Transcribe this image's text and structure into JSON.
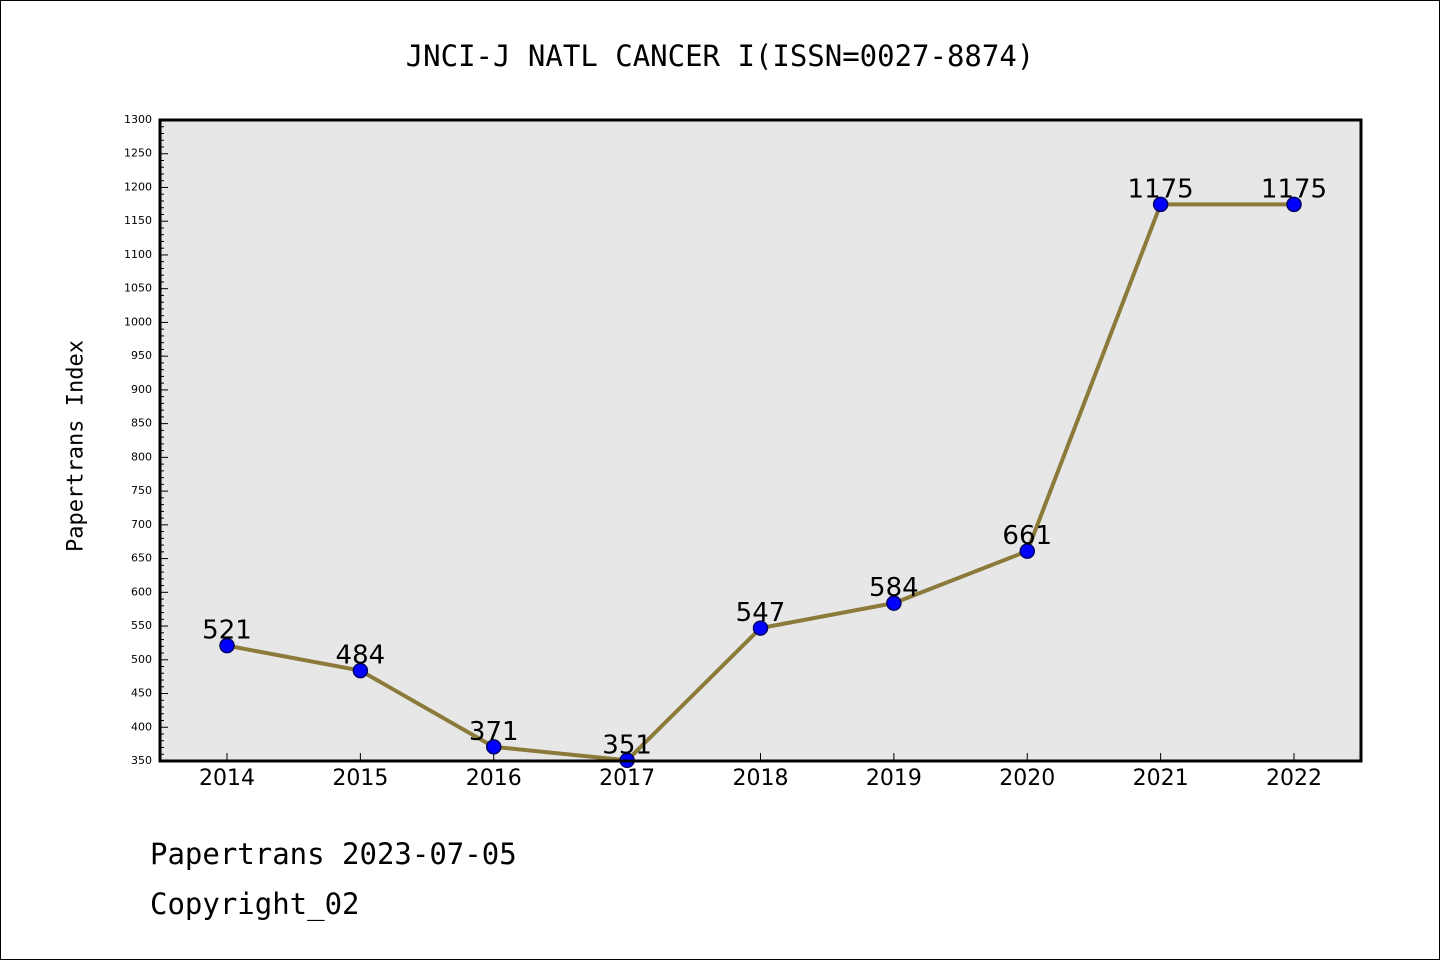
{
  "chart_data": {
    "type": "line",
    "title": "JNCI-J NATL CANCER I(ISSN=0027-8874)",
    "xlabel": "",
    "ylabel": "Papertrans Index",
    "x": [
      "2014",
      "2015",
      "2016",
      "2017",
      "2018",
      "2019",
      "2020",
      "2021",
      "2022"
    ],
    "series": [
      {
        "values": [
          521,
          484,
          371,
          351,
          547,
          584,
          661,
          1175,
          1175
        ],
        "data_labels": [
          "521",
          "484",
          "371",
          "351",
          "547",
          "584",
          "661",
          "1175",
          "1175"
        ]
      }
    ],
    "ylim": [
      350,
      1300
    ],
    "yticks": [
      350,
      400,
      450,
      500,
      550,
      600,
      650,
      700,
      750,
      800,
      850,
      900,
      950,
      1000,
      1050,
      1100,
      1150,
      1200,
      1250,
      1300
    ],
    "grid": false,
    "legend": "none",
    "colors": {
      "line": "#8b7a3a",
      "marker_fill": "#0000ff",
      "marker_stroke": "#000066",
      "plot_background": "#e7e7e7"
    }
  },
  "footer": {
    "date_text": "Papertrans 2023-07-05",
    "copyright_text": "Copyright_02"
  }
}
